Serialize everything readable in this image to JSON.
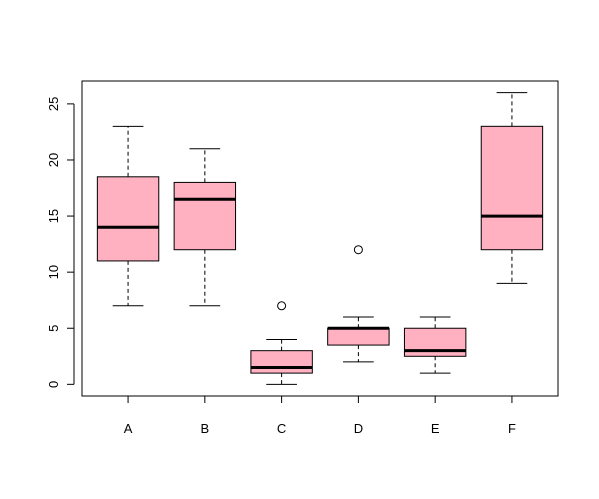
{
  "chart_data": {
    "type": "boxplot",
    "categories": [
      "A",
      "B",
      "C",
      "D",
      "E",
      "F"
    ],
    "boxes": [
      {
        "name": "A",
        "whisker_low": 7,
        "q1": 11,
        "median": 14,
        "q3": 18.5,
        "whisker_high": 23,
        "outliers": []
      },
      {
        "name": "B",
        "whisker_low": 7,
        "q1": 12,
        "median": 16.5,
        "q3": 18,
        "whisker_high": 21,
        "outliers": []
      },
      {
        "name": "C",
        "whisker_low": 0,
        "q1": 1,
        "median": 1.5,
        "q3": 3,
        "whisker_high": 4,
        "outliers": [
          7
        ]
      },
      {
        "name": "D",
        "whisker_low": 2,
        "q1": 3.5,
        "median": 5,
        "q3": 5,
        "whisker_high": 6,
        "outliers": [
          12
        ]
      },
      {
        "name": "E",
        "whisker_low": 1,
        "q1": 2.5,
        "median": 3,
        "q3": 5,
        "whisker_high": 6,
        "outliers": []
      },
      {
        "name": "F",
        "whisker_low": 9,
        "q1": 12,
        "median": 15,
        "q3": 23,
        "whisker_high": 26,
        "outliers": []
      }
    ],
    "y_ticks": [
      0,
      5,
      10,
      15,
      20,
      25
    ],
    "ylim": [
      -1.04,
      27.04
    ],
    "title": "",
    "xlabel": "",
    "ylabel": "",
    "box_fill": "#ffb1c1",
    "grid": false
  }
}
